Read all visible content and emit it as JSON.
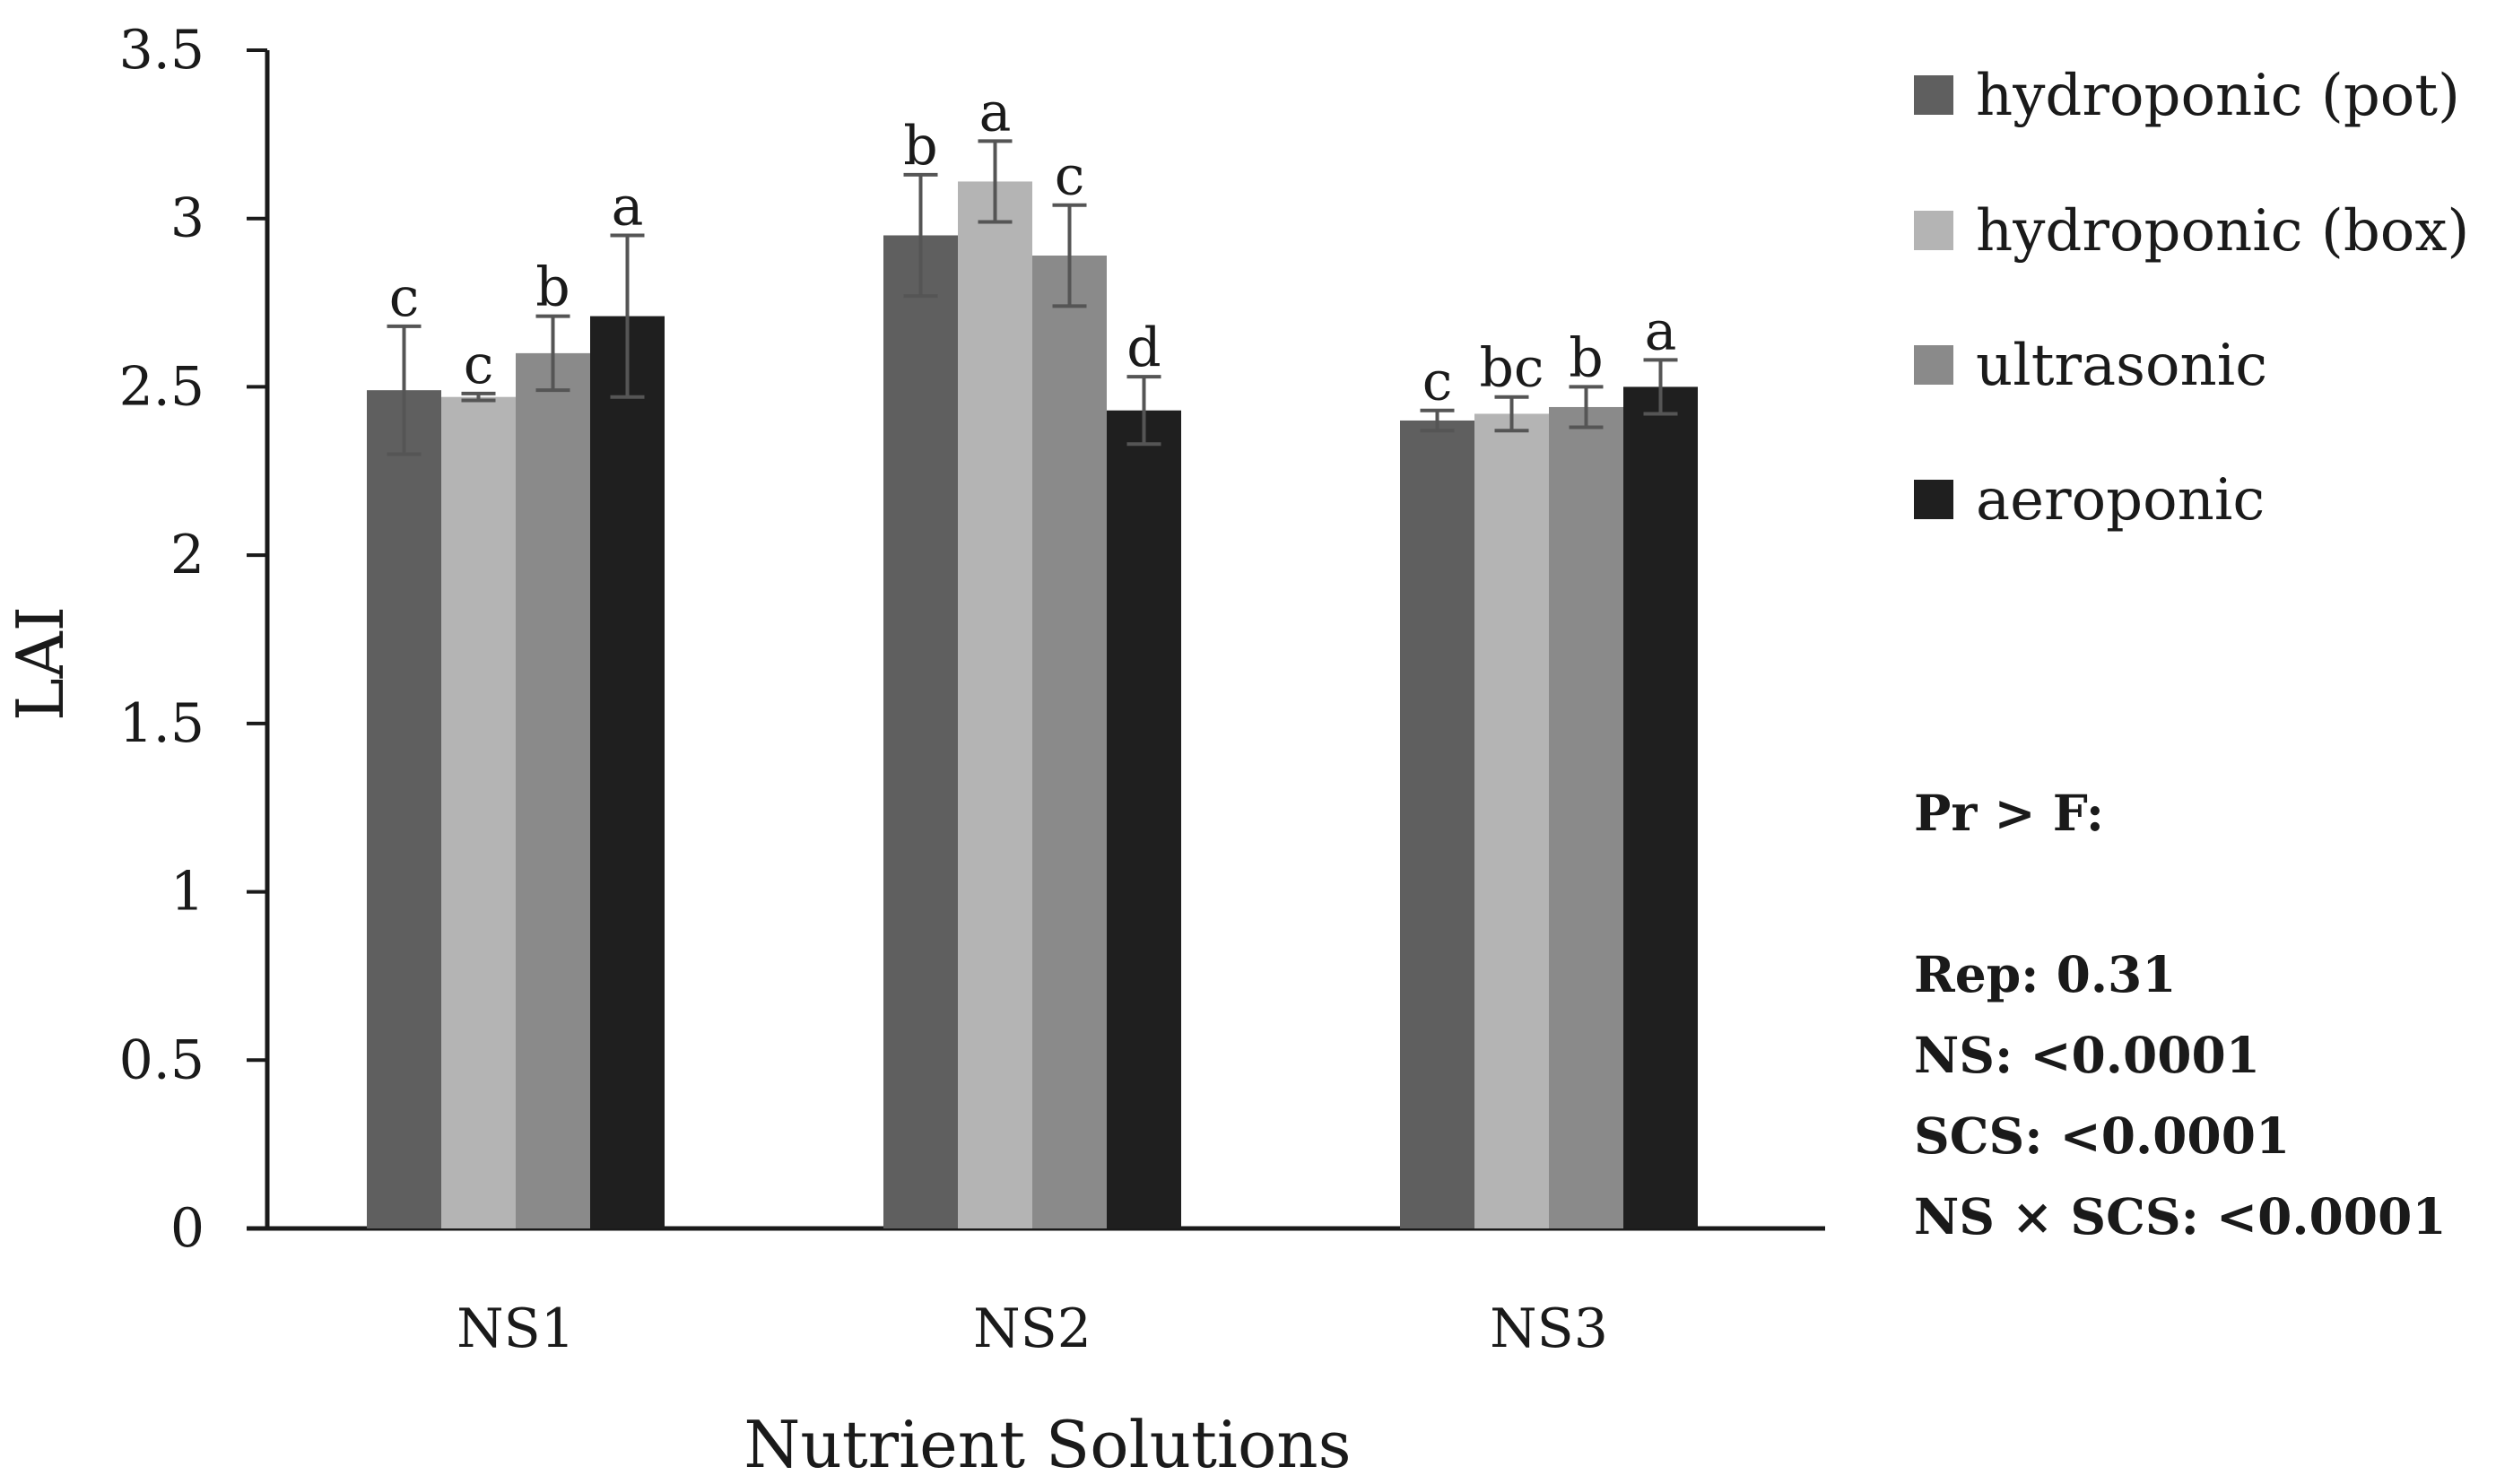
{
  "chart_data": {
    "type": "bar",
    "title": "",
    "xlabel": "Nutrient Solutions",
    "ylabel": "LAI",
    "ylim": [
      0,
      3.5
    ],
    "yticks": [
      0,
      0.5,
      1,
      1.5,
      2,
      2.5,
      3,
      3.5
    ],
    "ytick_labels": [
      "0",
      "0.5",
      "1",
      "1.5",
      "2",
      "2.5",
      "3",
      "3.5"
    ],
    "categories": [
      "NS1",
      "NS2",
      "NS3"
    ],
    "grid": false,
    "legend_position": "top-right",
    "series": [
      {
        "name": "hydroponic (pot)",
        "color": "#5f5f5f",
        "values": [
          2.49,
          2.95,
          2.4
        ],
        "errors": [
          0.19,
          0.18,
          0.03
        ],
        "letters": [
          "c",
          "b",
          "c"
        ]
      },
      {
        "name": "hydroponic (box)",
        "color": "#b4b4b4",
        "values": [
          2.47,
          3.11,
          2.42
        ],
        "errors": [
          0.01,
          0.12,
          0.05
        ],
        "letters": [
          "c",
          "a",
          "bc"
        ]
      },
      {
        "name": "ultrasonic",
        "color": "#8a8a8a",
        "values": [
          2.6,
          2.89,
          2.44
        ],
        "errors": [
          0.11,
          0.15,
          0.06
        ],
        "letters": [
          "b",
          "c",
          "b"
        ]
      },
      {
        "name": "aeroponic",
        "color": "#1f1f1f",
        "values": [
          2.71,
          2.43,
          2.5
        ],
        "errors": [
          0.24,
          0.1,
          0.08
        ],
        "letters": [
          "a",
          "d",
          "a"
        ]
      }
    ],
    "error_bar_color": "#555555"
  },
  "stats": {
    "heading": "Pr > F:",
    "lines": [
      "Rep: 0.31",
      "NS: <0.0001",
      "SCS: <0.0001",
      "NS × SCS: <0.0001"
    ]
  }
}
